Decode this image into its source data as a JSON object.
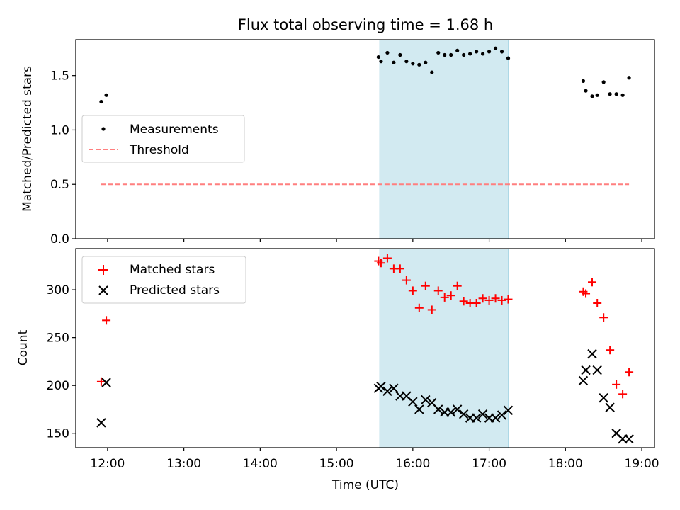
{
  "chart_data": [
    {
      "type": "scatter",
      "title": "Flux total observing time = 1.68 h",
      "ylabel": "Matched/Predicted stars",
      "xlabel": "",
      "ylim": [
        0,
        1.83
      ],
      "yticks": [
        0.0,
        0.5,
        1.0,
        1.5
      ],
      "ytick_labels": [
        "0.0",
        "0.5",
        "1.0",
        "1.5"
      ],
      "legend": {
        "placement": "center-left",
        "entries": [
          "Measurements",
          "Threshold"
        ]
      },
      "shaded_interval": [
        "15:34",
        "17:15"
      ],
      "series": [
        {
          "name": "Measurements",
          "color": "#000000",
          "marker": "dot",
          "points": [
            [
              "11:55",
              1.26
            ],
            [
              "11:59",
              1.32
            ],
            [
              "15:33",
              1.67
            ],
            [
              "15:35",
              1.63
            ],
            [
              "15:40",
              1.71
            ],
            [
              "15:45",
              1.62
            ],
            [
              "15:50",
              1.69
            ],
            [
              "15:55",
              1.63
            ],
            [
              "16:00",
              1.61
            ],
            [
              "16:05",
              1.6
            ],
            [
              "16:10",
              1.62
            ],
            [
              "16:15",
              1.53
            ],
            [
              "16:20",
              1.71
            ],
            [
              "16:25",
              1.69
            ],
            [
              "16:30",
              1.69
            ],
            [
              "16:35",
              1.73
            ],
            [
              "16:40",
              1.69
            ],
            [
              "16:45",
              1.7
            ],
            [
              "16:50",
              1.72
            ],
            [
              "16:55",
              1.7
            ],
            [
              "17:00",
              1.72
            ],
            [
              "17:05",
              1.75
            ],
            [
              "17:10",
              1.72
            ],
            [
              "17:15",
              1.66
            ],
            [
              "18:14",
              1.45
            ],
            [
              "18:16",
              1.36
            ],
            [
              "18:21",
              1.31
            ],
            [
              "18:25",
              1.32
            ],
            [
              "18:30",
              1.44
            ],
            [
              "18:35",
              1.33
            ],
            [
              "18:40",
              1.33
            ],
            [
              "18:45",
              1.32
            ],
            [
              "18:50",
              1.48
            ]
          ]
        },
        {
          "name": "Threshold",
          "color": "#ff7f7f",
          "style": "dashed",
          "points": [
            [
              "11:55",
              0.5
            ],
            [
              "18:50",
              0.5
            ]
          ]
        }
      ]
    },
    {
      "type": "scatter",
      "title": "",
      "ylabel": "Count",
      "xlabel": "Time (UTC)",
      "ylim": [
        135,
        343
      ],
      "yticks": [
        150,
        200,
        250,
        300
      ],
      "ytick_labels": [
        "150",
        "200",
        "250",
        "300"
      ],
      "xlim": [
        "11:35",
        "19:10"
      ],
      "xticks": [
        "12:00",
        "13:00",
        "14:00",
        "15:00",
        "16:00",
        "17:00",
        "18:00",
        "19:00"
      ],
      "legend": {
        "placement": "top-left",
        "entries": [
          "Matched stars",
          "Predicted stars"
        ]
      },
      "shaded_interval": [
        "15:34",
        "17:15"
      ],
      "series": [
        {
          "name": "Matched stars",
          "color": "#ff0000",
          "marker": "plus",
          "points": [
            [
              "11:55",
              204
            ],
            [
              "11:59",
              268
            ],
            [
              "15:33",
              330
            ],
            [
              "15:35",
              328
            ],
            [
              "15:40",
              333
            ],
            [
              "15:45",
              322
            ],
            [
              "15:50",
              322
            ],
            [
              "15:55",
              310
            ],
            [
              "16:00",
              299
            ],
            [
              "16:05",
              281
            ],
            [
              "16:10",
              304
            ],
            [
              "16:15",
              279
            ],
            [
              "16:20",
              299
            ],
            [
              "16:25",
              292
            ],
            [
              "16:30",
              294
            ],
            [
              "16:35",
              304
            ],
            [
              "16:40",
              288
            ],
            [
              "16:45",
              286
            ],
            [
              "16:50",
              286
            ],
            [
              "16:55",
              291
            ],
            [
              "17:00",
              289
            ],
            [
              "17:05",
              291
            ],
            [
              "17:10",
              289
            ],
            [
              "17:15",
              290
            ],
            [
              "18:14",
              298
            ],
            [
              "18:16",
              296
            ],
            [
              "18:21",
              308
            ],
            [
              "18:25",
              286
            ],
            [
              "18:30",
              271
            ],
            [
              "18:35",
              237
            ],
            [
              "18:40",
              201
            ],
            [
              "18:45",
              191
            ],
            [
              "18:50",
              214
            ]
          ]
        },
        {
          "name": "Predicted stars",
          "color": "#000000",
          "marker": "x",
          "points": [
            [
              "11:55",
              161
            ],
            [
              "11:59",
              203
            ],
            [
              "15:33",
              197
            ],
            [
              "15:35",
              199
            ],
            [
              "15:40",
              194
            ],
            [
              "15:45",
              197
            ],
            [
              "15:50",
              189
            ],
            [
              "15:55",
              189
            ],
            [
              "16:00",
              183
            ],
            [
              "16:05",
              175
            ],
            [
              "16:10",
              185
            ],
            [
              "16:15",
              182
            ],
            [
              "16:20",
              175
            ],
            [
              "16:25",
              172
            ],
            [
              "16:30",
              172
            ],
            [
              "16:35",
              175
            ],
            [
              "16:40",
              170
            ],
            [
              "16:45",
              166
            ],
            [
              "16:50",
              166
            ],
            [
              "16:55",
              170
            ],
            [
              "17:00",
              166
            ],
            [
              "17:05",
              166
            ],
            [
              "17:10",
              169
            ],
            [
              "17:15",
              174
            ],
            [
              "18:14",
              205
            ],
            [
              "18:16",
              216
            ],
            [
              "18:21",
              233
            ],
            [
              "18:25",
              216
            ],
            [
              "18:30",
              187
            ],
            [
              "18:35",
              177
            ],
            [
              "18:40",
              150
            ],
            [
              "18:45",
              144
            ],
            [
              "18:50",
              144
            ]
          ]
        }
      ]
    }
  ]
}
